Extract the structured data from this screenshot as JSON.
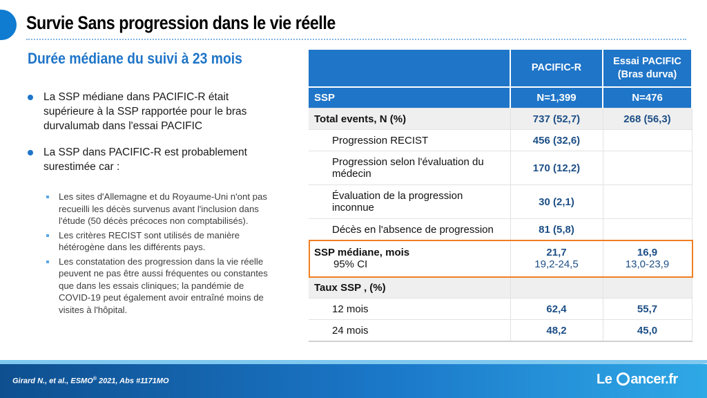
{
  "header": {
    "title": "Survie Sans progression dans le vie réelle",
    "subtitle": "Durée médiane du suivi à 23 mois"
  },
  "bullets": [
    "La SSP médiane dans PACIFIC-R était supérieure à la SSP rapportée pour le bras durvalumab dans l'essai PACIFIC",
    "La SSP dans PACIFIC-R est probablement surestimée car :"
  ],
  "sub_bullets": [
    "Les sites d'Allemagne et du Royaume-Uni n'ont pas recueilli les décès survenus avant l'inclusion dans l'étude (50 décès précoces non comptabilisés).",
    "Les critères RECIST sont utilisés de manière hétérogène dans les différents pays.",
    "Les constatation des progression dans la vie réelle peuvent ne pas être aussi fréquentes ou constantes que dans les essais cliniques; la pandémie de COVID-19 peut également avoir entraîné moins de visites à l'hôpital."
  ],
  "table": {
    "col1": "PACIFIC-R",
    "col2_line1": "Essai PACIFIC",
    "col2_line2": "(Bras durva)",
    "ssp_label": "SSP",
    "ssp_n1": "N=1,399",
    "ssp_n2": "N=476",
    "total_label": "Total events, N (%)",
    "total_v1": "737 (52,7)",
    "total_v2": "268 (56,3)",
    "rows": [
      {
        "label": "Progression RECIST",
        "v1": "456 (32,6)"
      },
      {
        "label": "Progression selon l'évaluation du médecin",
        "v1": "170 (12,2)"
      },
      {
        "label": "Évaluation de la progression inconnue",
        "v1": "30 (2,1)"
      },
      {
        "label": "Décès en l'absence de progression",
        "v1": "81 (5,8)"
      }
    ],
    "median_label": "SSP médiane, mois",
    "ci_label": "95% CI",
    "median_v1": "21,7",
    "ci_v1": "19,2-24,5",
    "median_v2": "16,9",
    "ci_v2": "13,0-23,9",
    "rate_label": "Taux SSP , (%)",
    "rate12_label": "12 mois",
    "rate12_v1": "62,4",
    "rate12_v2": "55,7",
    "rate24_label": "24 mois",
    "rate24_v1": "48,2",
    "rate24_v2": "45,0"
  },
  "footer": {
    "citation_a": "Girard N., et al., ESMO",
    "citation_sup": "®",
    "citation_b": " 2021, Abs #1171MO",
    "brand_a": "Le ",
    "brand_b": "ancer.fr"
  },
  "colors": {
    "accent": "#1f75c8",
    "highlight": "#f07e1f"
  }
}
